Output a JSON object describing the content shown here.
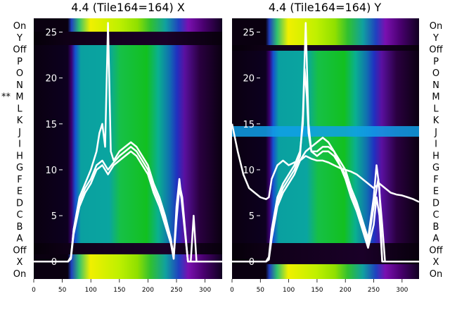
{
  "chart_data": [
    {
      "type": "heatmap",
      "title": "4.4 (Tile164=164) X",
      "row_labels": [
        "On",
        "Y",
        "Off",
        "P",
        "O",
        "N",
        "M",
        "L",
        "K",
        "J",
        "I",
        "H",
        "G",
        "F",
        "E",
        "D",
        "C",
        "B",
        "A",
        "Off",
        "X",
        "On"
      ],
      "marked_row": "M",
      "marked_prefix": "**",
      "x_ticks": [
        "0",
        "50",
        "100",
        "150",
        "200",
        "250",
        "300"
      ],
      "xlim": [
        0,
        330
      ],
      "y_ticks": [
        "0",
        "5",
        "10",
        "15",
        "20",
        "25"
      ],
      "ylim": [
        -1.9,
        26.5
      ],
      "series": [
        {
          "x": [
            0,
            60,
            65,
            70,
            80,
            90,
            100,
            110,
            120,
            130,
            140,
            150,
            160,
            170,
            180,
            190,
            200,
            210,
            220,
            230,
            240,
            245,
            250,
            255,
            260,
            270,
            275,
            280,
            285,
            290,
            330
          ],
          "y": [
            0,
            0,
            0.5,
            3.5,
            6.5,
            8,
            9,
            10.5,
            11,
            10,
            10.8,
            11.5,
            12,
            12.5,
            12,
            11,
            10,
            8,
            6.5,
            4.5,
            2.5,
            0.5,
            5,
            8.5,
            7,
            0,
            0,
            0,
            0,
            0,
            0
          ]
        },
        {
          "x": [
            0,
            60,
            65,
            70,
            80,
            90,
            100,
            110,
            120,
            130,
            140,
            150,
            160,
            170,
            180,
            190,
            200,
            210,
            220,
            230,
            240,
            245,
            250,
            255,
            260,
            270,
            275,
            280,
            285,
            290,
            330
          ],
          "y": [
            0,
            0,
            0.3,
            3,
            6,
            7.5,
            8.5,
            10,
            10.5,
            9.5,
            10.5,
            11,
            11.5,
            12,
            11.5,
            10.5,
            9.5,
            7.5,
            6,
            4,
            2,
            0.3,
            4.5,
            8,
            6.5,
            0,
            0,
            5,
            0,
            0,
            0
          ]
        },
        {
          "x": [
            0,
            60,
            65,
            70,
            80,
            90,
            100,
            110,
            115,
            120,
            125,
            130,
            135,
            140,
            150,
            160,
            170,
            180,
            190,
            200,
            210,
            220,
            230,
            240,
            245,
            250,
            255,
            260,
            270,
            290,
            330
          ],
          "y": [
            0,
            0,
            0.3,
            3.5,
            7,
            8.5,
            10,
            12,
            14,
            15,
            12.5,
            26,
            12,
            11,
            12,
            12.5,
            13,
            12.5,
            11.5,
            10.5,
            8.5,
            7,
            5,
            2.5,
            0.3,
            6,
            9,
            6,
            0,
            0,
            0
          ]
        }
      ]
    },
    {
      "type": "heatmap",
      "title": "4.4 (Tile164=164) Y",
      "row_labels": [
        "On",
        "Y",
        "Off",
        "P",
        "O",
        "N",
        "M",
        "L",
        "K",
        "J",
        "I",
        "H",
        "G",
        "F",
        "E",
        "D",
        "C",
        "B",
        "A",
        "Off",
        "X",
        "On"
      ],
      "x_ticks": [
        "0",
        "50",
        "100",
        "150",
        "200",
        "250",
        "300"
      ],
      "xlim": [
        0,
        330
      ],
      "y_ticks": [
        "0",
        "5",
        "10",
        "15",
        "20",
        "25"
      ],
      "ylim": [
        -1.9,
        26.5
      ],
      "series": [
        {
          "x": [
            0,
            10,
            20,
            30,
            40,
            50,
            60,
            65,
            70,
            80,
            90,
            100,
            110,
            120,
            130,
            140,
            150,
            160,
            170,
            180,
            190,
            200,
            210,
            220,
            230,
            240,
            250,
            260,
            270,
            280,
            290,
            300,
            310,
            320,
            330
          ],
          "y": [
            15,
            12,
            9.5,
            8,
            7.5,
            7,
            6.8,
            7,
            9,
            10.5,
            11,
            10.5,
            10.8,
            11,
            11.5,
            11.2,
            11,
            11,
            10.8,
            10.5,
            10.2,
            10,
            9.8,
            9.5,
            9,
            8.5,
            8,
            8.5,
            8,
            7.5,
            7.3,
            7.2,
            7,
            6.8,
            6.5
          ]
        },
        {
          "x": [
            0,
            60,
            65,
            70,
            80,
            90,
            100,
            110,
            120,
            125,
            128,
            132,
            135,
            140,
            150,
            160,
            170,
            180,
            190,
            200,
            210,
            220,
            230,
            240,
            250,
            255,
            260,
            265,
            270,
            280,
            290,
            330
          ],
          "y": [
            0,
            0,
            0.5,
            3.5,
            7,
            8.5,
            9.5,
            10.5,
            12,
            15,
            21,
            18,
            14,
            12,
            12,
            12.5,
            12.5,
            12,
            11,
            10,
            8,
            6.5,
            4.5,
            2.5,
            7,
            10.5,
            8,
            0,
            0,
            0,
            0,
            0
          ]
        },
        {
          "x": [
            0,
            60,
            65,
            70,
            80,
            90,
            100,
            110,
            120,
            125,
            130,
            135,
            140,
            150,
            160,
            170,
            180,
            190,
            200,
            210,
            220,
            230,
            240,
            250,
            258,
            265,
            270,
            290,
            330
          ],
          "y": [
            0,
            0,
            0.3,
            3,
            6.5,
            8,
            9,
            10,
            11.5,
            16,
            26,
            15,
            12,
            11.5,
            12,
            12,
            11.5,
            10.5,
            9.5,
            7.5,
            6,
            4,
            2,
            6,
            9,
            4,
            0,
            0,
            0
          ]
        },
        {
          "x": [
            0,
            60,
            65,
            70,
            80,
            90,
            100,
            110,
            120,
            130,
            140,
            150,
            160,
            170,
            180,
            190,
            200,
            210,
            220,
            230,
            240,
            250,
            255,
            260,
            265,
            270,
            290,
            330
          ],
          "y": [
            0,
            0,
            0.2,
            2.5,
            6,
            7.5,
            8.5,
            9.5,
            11,
            12,
            12.5,
            13,
            13.5,
            13,
            12,
            10.5,
            9,
            7,
            5.5,
            3.5,
            1.5,
            4,
            7,
            5,
            0,
            0,
            0,
            0
          ]
        }
      ]
    }
  ]
}
